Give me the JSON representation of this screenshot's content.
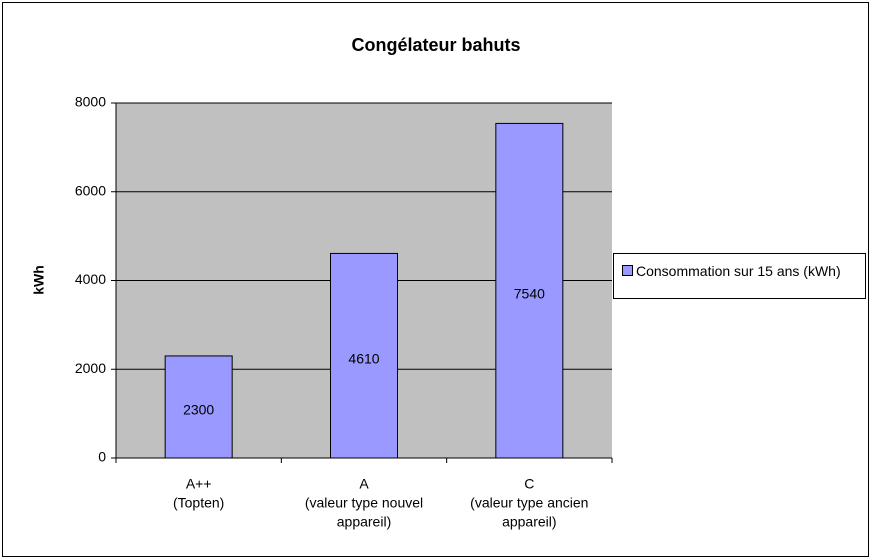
{
  "chart_data": {
    "type": "bar",
    "title": "Congélateur bahuts",
    "y_label": "kWh",
    "categories": [
      [
        "A++",
        "(Topten)"
      ],
      [
        "A",
        "(valeur type nouvel",
        "appareil)"
      ],
      [
        "C",
        "(valeur type ancien",
        "appareil)"
      ]
    ],
    "series": [
      {
        "name": "Consommation sur 15 ans (kWh)",
        "color": "#9999ff",
        "values": [
          2300,
          4610,
          7540
        ]
      }
    ],
    "ylim": [
      0,
      8000
    ],
    "yticks": [
      0,
      2000,
      4000,
      6000,
      8000
    ],
    "grid": true,
    "legend": "right"
  }
}
